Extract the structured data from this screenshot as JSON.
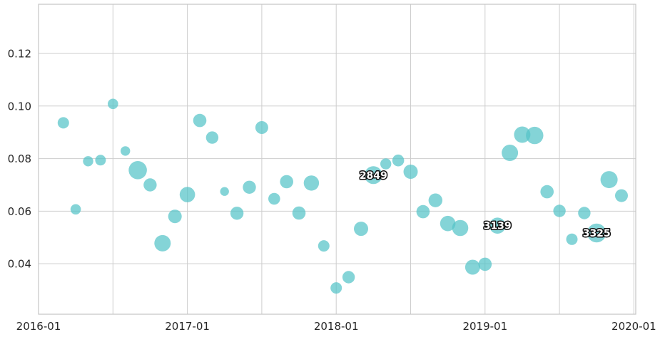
{
  "figure": {
    "background": "#ffffff"
  },
  "chart_data": {
    "type": "scatter",
    "subtype": "bubble-timeseries",
    "title": "",
    "xlabel": "",
    "ylabel": "",
    "grid": true,
    "legend": "none",
    "colors": {
      "bubble_fill": "#54c3c8",
      "bubble_opacity": 0.72,
      "gridline": "#cdcdcd",
      "spine": "#c4c4c4",
      "tick_text": "#262626",
      "annotation_text": "#ffffff",
      "annotation_outline": "#111111"
    },
    "x_axis": {
      "unit": "month",
      "start_month": "2016-01",
      "lim_months": [
        0,
        48.15
      ],
      "gridline_month_indices": [
        6,
        12,
        18,
        24,
        30,
        36,
        42,
        48
      ],
      "ticks": [
        {
          "idx": 0,
          "label": "2016-01"
        },
        {
          "idx": 12,
          "label": "2017-01"
        },
        {
          "idx": 24,
          "label": "2018-01"
        },
        {
          "idx": 36,
          "label": "2019-01"
        },
        {
          "idx": 48,
          "label": "2020-01"
        }
      ]
    },
    "y_axis": {
      "lim": [
        0.0208,
        0.1387
      ],
      "ticks": [
        {
          "value": 0.12,
          "label": "0.12"
        },
        {
          "value": 0.1,
          "label": "0.10"
        },
        {
          "value": 0.08,
          "label": "0.08"
        },
        {
          "value": 0.06,
          "label": "0.06"
        },
        {
          "value": 0.04,
          "label": "0.04"
        }
      ]
    },
    "points": [
      {
        "date": "2016-03",
        "y": 0.0936,
        "r": 8.0
      },
      {
        "date": "2016-04",
        "y": 0.0607,
        "r": 7.3
      },
      {
        "date": "2016-05",
        "y": 0.079,
        "r": 7.2
      },
      {
        "date": "2016-06",
        "y": 0.0794,
        "r": 7.5
      },
      {
        "date": "2016-07",
        "y": 0.1008,
        "r": 7.3
      },
      {
        "date": "2016-08",
        "y": 0.0829,
        "r": 6.7
      },
      {
        "date": "2016-09",
        "y": 0.0756,
        "r": 12.8
      },
      {
        "date": "2016-10",
        "y": 0.07,
        "r": 9.2
      },
      {
        "date": "2016-11",
        "y": 0.0478,
        "r": 11.5
      },
      {
        "date": "2016-12",
        "y": 0.058,
        "r": 9.5
      },
      {
        "date": "2017-01",
        "y": 0.0663,
        "r": 10.8
      },
      {
        "date": "2017-02",
        "y": 0.0945,
        "r": 9.3
      },
      {
        "date": "2017-03",
        "y": 0.088,
        "r": 8.7
      },
      {
        "date": "2017-04",
        "y": 0.0675,
        "r": 6.2
      },
      {
        "date": "2017-05",
        "y": 0.0592,
        "r": 9.2
      },
      {
        "date": "2017-06",
        "y": 0.0691,
        "r": 9.2
      },
      {
        "date": "2017-07",
        "y": 0.0918,
        "r": 9.0
      },
      {
        "date": "2017-08",
        "y": 0.0647,
        "r": 8.3
      },
      {
        "date": "2017-09",
        "y": 0.0712,
        "r": 9.3
      },
      {
        "date": "2017-10",
        "y": 0.0593,
        "r": 9.3
      },
      {
        "date": "2017-11",
        "y": 0.0707,
        "r": 10.7
      },
      {
        "date": "2017-12",
        "y": 0.0468,
        "r": 8.0
      },
      {
        "date": "2018-01",
        "y": 0.0308,
        "r": 8.0
      },
      {
        "date": "2018-02",
        "y": 0.0349,
        "r": 8.7
      },
      {
        "date": "2018-03",
        "y": 0.0533,
        "r": 10.0
      },
      {
        "date": "2018-04",
        "y": 0.0737,
        "r": 12.5,
        "label": "2849"
      },
      {
        "date": "2018-05",
        "y": 0.078,
        "r": 7.7
      },
      {
        "date": "2018-06",
        "y": 0.0793,
        "r": 8.3
      },
      {
        "date": "2018-07",
        "y": 0.075,
        "r": 10.0
      },
      {
        "date": "2018-08",
        "y": 0.0598,
        "r": 9.3
      },
      {
        "date": "2018-09",
        "y": 0.0641,
        "r": 9.7
      },
      {
        "date": "2018-10",
        "y": 0.0553,
        "r": 10.8
      },
      {
        "date": "2018-11",
        "y": 0.0536,
        "r": 11.3
      },
      {
        "date": "2018-12",
        "y": 0.0387,
        "r": 10.5
      },
      {
        "date": "2019-01",
        "y": 0.0398,
        "r": 9.3
      },
      {
        "date": "2019-02",
        "y": 0.0545,
        "r": 11.3,
        "label": "3139"
      },
      {
        "date": "2019-03",
        "y": 0.0822,
        "r": 11.5
      },
      {
        "date": "2019-04",
        "y": 0.0891,
        "r": 11.5
      },
      {
        "date": "2019-05",
        "y": 0.0888,
        "r": 12.2
      },
      {
        "date": "2019-06",
        "y": 0.0674,
        "r": 9.3
      },
      {
        "date": "2019-07",
        "y": 0.0601,
        "r": 8.7
      },
      {
        "date": "2019-08",
        "y": 0.0493,
        "r": 8.0
      },
      {
        "date": "2019-09",
        "y": 0.0593,
        "r": 8.7
      },
      {
        "date": "2019-10",
        "y": 0.0517,
        "r": 13.3,
        "label": "3325"
      },
      {
        "date": "2019-11",
        "y": 0.072,
        "r": 12.0
      },
      {
        "date": "2019-12",
        "y": 0.0659,
        "r": 9.0
      }
    ]
  }
}
